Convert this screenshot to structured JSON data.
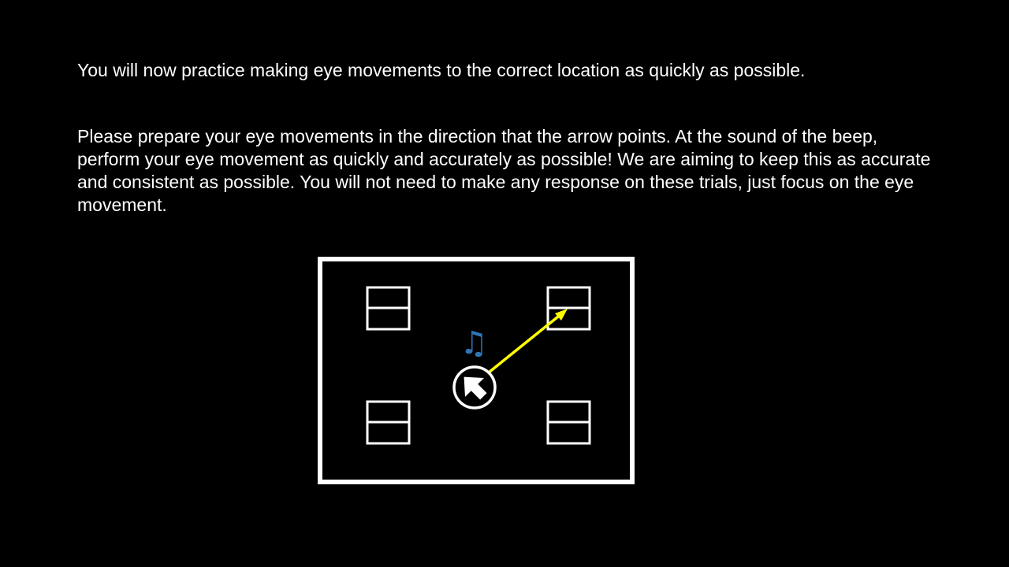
{
  "slide": {
    "instruction_1": "You will now practice making eye movements to the correct location as quickly as possible.",
    "instruction_2": "Please prepare your eye movements in the direction that the arrow points. At the sound of the beep, perform your eye movement as quickly and accurately as possible! We are aiming to keep this as accurate and consistent as possible. You will not need to make any response on these trials, just focus on the eye movement."
  },
  "diagram": {
    "music_note_glyph": "♫",
    "colors": {
      "background": "#000000",
      "frame": "#ffffff",
      "saccade_line": "#ffff00",
      "music_note": "#2e75b6"
    },
    "icons": {
      "music_note": "music-note-icon",
      "cue_arrow": "arrow-up-right-icon"
    },
    "target_location": "top-right",
    "cue_direction": "top-right"
  }
}
